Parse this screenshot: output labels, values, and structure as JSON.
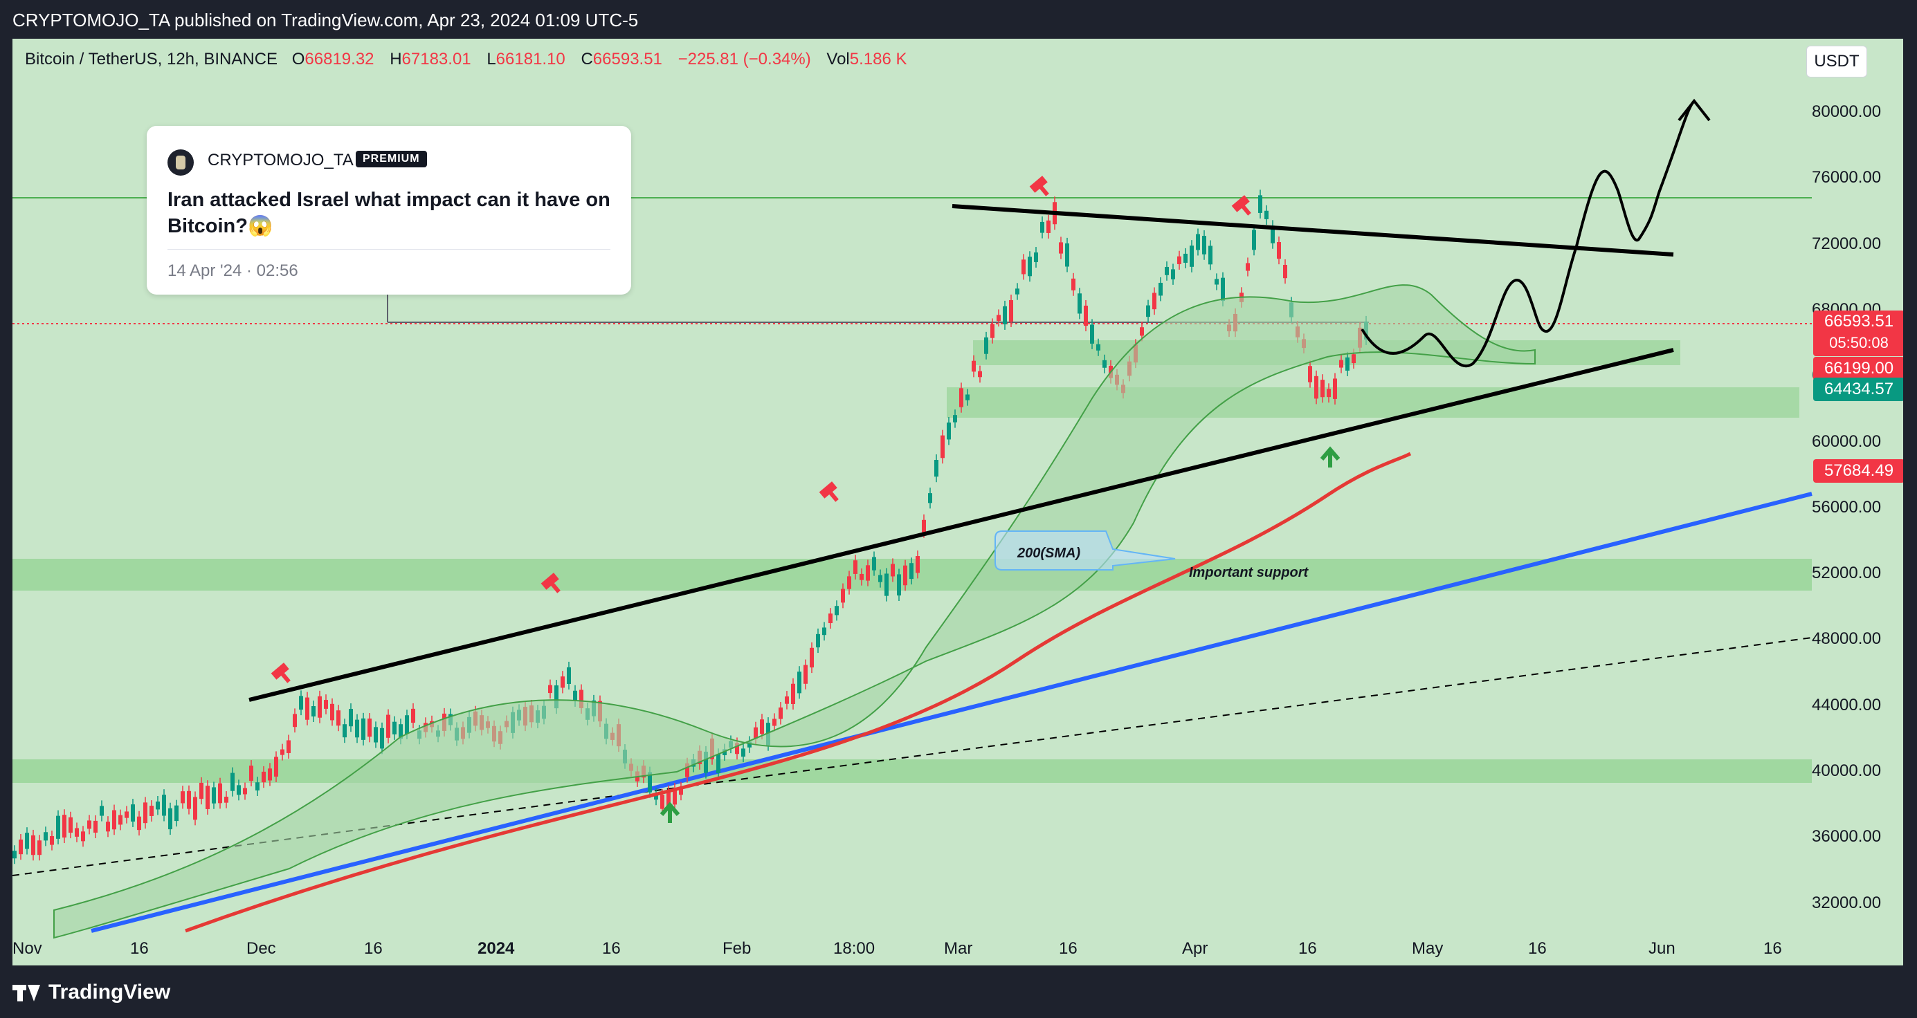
{
  "publisher_line": "CRYPTOMOJO_TA published on TradingView.com, Apr 23, 2024 01:09 UTC-5",
  "symbol": {
    "name": "Bitcoin / TetherUS, 12h, BINANCE",
    "open_label": "O",
    "open": "66819.32",
    "high_label": "H",
    "high": "67183.01",
    "low_label": "L",
    "low": "66181.10",
    "close_label": "C",
    "close": "66593.51",
    "change": "−225.81 (−0.34%)",
    "vol_label": "Vol",
    "vol": "5.186 K"
  },
  "currency_button": "USDT",
  "post": {
    "author": "CRYPTOMOJO_TA",
    "badge": "PREMIUM",
    "title": "Iran attacked Israel what impact can it have on Bitcoin?😱",
    "date": "14 Apr '24 · 02:56"
  },
  "annotations": {
    "sma_label": "200(SMA)",
    "support_label": "Important support"
  },
  "price_axis": {
    "ticks": [
      "80000.00",
      "76000.00",
      "72000.00",
      "68000.00",
      "64000.00",
      "60000.00",
      "56000.00",
      "52000.00",
      "48000.00",
      "44000.00",
      "40000.00",
      "36000.00",
      "32000.00"
    ],
    "last_price": "66593.51",
    "countdown": "05:50:08",
    "label_b": "66199.00",
    "label_c": "64434.57",
    "label_d": "57684.49"
  },
  "time_axis": {
    "ticks": [
      "Nov",
      "16",
      "Dec",
      "16",
      "2024",
      "16",
      "Feb",
      "18:00",
      "Mar",
      "16",
      "Apr",
      "16",
      "May",
      "16",
      "Jun",
      "16"
    ]
  },
  "footer": {
    "brand": "TradingView"
  },
  "colors": {
    "background": "#c8e6c9",
    "zone": "#8fd18f",
    "up": "#089981",
    "down": "#f23645",
    "trend": "#000000",
    "blue": "#2962ff",
    "sma": "#e53935"
  }
}
